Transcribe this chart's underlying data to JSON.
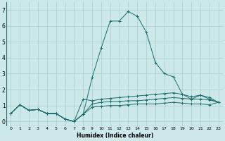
{
  "xlabel": "Humidex (Indice chaleur)",
  "background_color": "#cce8e8",
  "grid_color": "#aacece",
  "line_color": "#1a6b6b",
  "xlim": [
    -0.5,
    23.5
  ],
  "ylim": [
    -0.3,
    7.5
  ],
  "xticks": [
    0,
    1,
    2,
    3,
    4,
    5,
    6,
    7,
    8,
    9,
    10,
    11,
    12,
    13,
    14,
    15,
    16,
    17,
    18,
    19,
    20,
    21,
    22,
    23
  ],
  "yticks": [
    0,
    1,
    2,
    3,
    4,
    5,
    6,
    7
  ],
  "series": [
    [
      0.5,
      1.05,
      0.7,
      0.75,
      0.5,
      0.5,
      0.15,
      0.0,
      0.45,
      0.9,
      0.95,
      1.0,
      1.0,
      1.05,
      1.1,
      1.1,
      1.1,
      1.15,
      1.2,
      1.15,
      1.1,
      1.1,
      1.05,
      1.2
    ],
    [
      0.5,
      1.05,
      0.7,
      0.75,
      0.5,
      0.5,
      0.15,
      0.0,
      0.45,
      1.1,
      1.2,
      1.25,
      1.25,
      1.3,
      1.3,
      1.35,
      1.4,
      1.45,
      1.5,
      1.45,
      1.4,
      1.4,
      1.35,
      1.2
    ],
    [
      0.5,
      1.05,
      0.7,
      0.75,
      0.5,
      0.5,
      0.15,
      0.0,
      1.4,
      1.3,
      1.4,
      1.45,
      1.5,
      1.55,
      1.6,
      1.65,
      1.7,
      1.75,
      1.8,
      1.7,
      1.55,
      1.65,
      1.5,
      1.2
    ],
    [
      0.5,
      1.05,
      0.7,
      0.75,
      0.5,
      0.5,
      0.15,
      0.0,
      0.45,
      2.75,
      4.6,
      6.3,
      6.3,
      6.9,
      6.6,
      5.6,
      3.7,
      3.0,
      2.8,
      1.7,
      1.4,
      1.65,
      1.4,
      1.2
    ]
  ]
}
